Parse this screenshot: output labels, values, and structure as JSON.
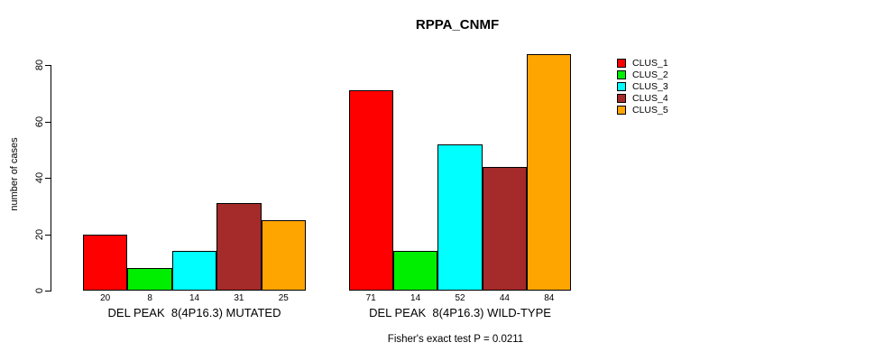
{
  "chart_data": {
    "type": "bar",
    "title": "RPPA_CNMF",
    "ylabel": "number of cases",
    "ylim": [
      0,
      84
    ],
    "yticks": [
      0,
      20,
      40,
      60,
      80
    ],
    "grid": false,
    "legend_position": "top-right",
    "bar_value_labels": true,
    "categories": [
      "DEL PEAK  8(4P16.3) MUTATED",
      "DEL PEAK  8(4P16.3) WILD-TYPE"
    ],
    "series": [
      {
        "name": "CLUS_1",
        "color": "#FF0000",
        "values": [
          20,
          71
        ]
      },
      {
        "name": "CLUS_2",
        "color": "#00EE00",
        "values": [
          8,
          14
        ]
      },
      {
        "name": "CLUS_3",
        "color": "#00FFFF",
        "values": [
          14,
          52
        ]
      },
      {
        "name": "CLUS_4",
        "color": "#A52A2A",
        "values": [
          31,
          44
        ]
      },
      {
        "name": "CLUS_5",
        "color": "#FFA500",
        "values": [
          25,
          84
        ]
      }
    ],
    "annotation": "Fisher's exact test P = 0.0211"
  }
}
